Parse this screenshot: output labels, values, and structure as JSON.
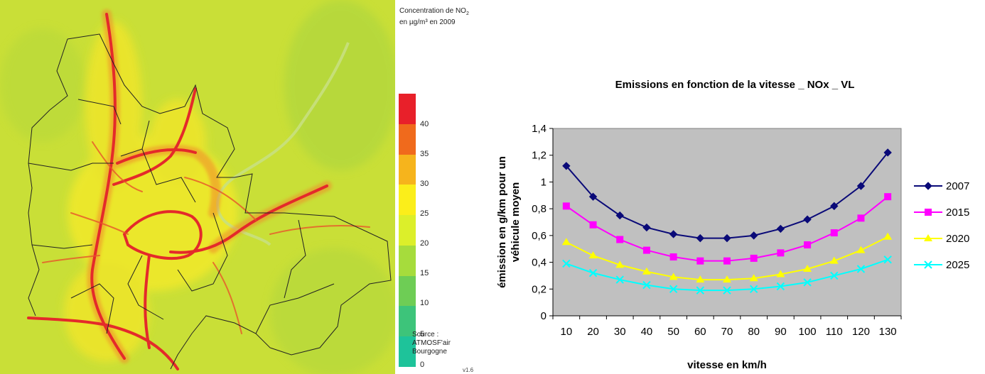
{
  "map": {
    "legend_title_line1": "Concentration de NO",
    "legend_title_sub": "2",
    "legend_title_line2": "en µg/m³ en 2009",
    "scale_ticks": [
      "40",
      "35",
      "30",
      "25",
      "20",
      "15",
      "10",
      "5",
      "0"
    ],
    "scale_colors": [
      "#e8202a",
      "#f06a1c",
      "#f6b41c",
      "#fbee1a",
      "#dcef2a",
      "#a6dc3c",
      "#6ecd55",
      "#3dc47a",
      "#1ec39a"
    ],
    "source_line1": "Source :",
    "source_line2": "ATMOSF'air",
    "source_line3": "Bourgogne",
    "version": "v1.6"
  },
  "chart_data": {
    "type": "line",
    "title": "Emissions en fonction de la vitesse _ NOx _ VL",
    "xlabel": "vitesse en km/h",
    "ylabel_line1": "émission en g/km  pour un",
    "ylabel_line2": "véhicule moyen",
    "categories": [
      "10",
      "20",
      "30",
      "40",
      "50",
      "60",
      "70",
      "80",
      "90",
      "100",
      "110",
      "120",
      "130"
    ],
    "ylim": [
      0,
      1.4
    ],
    "yticks": [
      "0",
      "0,2",
      "0,4",
      "0,6",
      "0,8",
      "1",
      "1,2",
      "1,4"
    ],
    "legend_position": "right",
    "plot_background": "#c0c0c0",
    "series": [
      {
        "name": "2007",
        "color": "#0a0a78",
        "marker": "diamond",
        "values": [
          1.12,
          0.89,
          0.75,
          0.66,
          0.61,
          0.58,
          0.58,
          0.6,
          0.65,
          0.72,
          0.82,
          0.97,
          1.22
        ]
      },
      {
        "name": "2015",
        "color": "#ff00ff",
        "marker": "square",
        "values": [
          0.82,
          0.68,
          0.57,
          0.49,
          0.44,
          0.41,
          0.41,
          0.43,
          0.47,
          0.53,
          0.62,
          0.73,
          0.89
        ]
      },
      {
        "name": "2020",
        "color": "#ffff00",
        "marker": "triangle",
        "values": [
          0.55,
          0.45,
          0.38,
          0.33,
          0.29,
          0.27,
          0.27,
          0.28,
          0.31,
          0.35,
          0.41,
          0.49,
          0.59
        ]
      },
      {
        "name": "2025",
        "color": "#00ffff",
        "marker": "x",
        "values": [
          0.39,
          0.32,
          0.27,
          0.23,
          0.2,
          0.19,
          0.19,
          0.2,
          0.22,
          0.25,
          0.3,
          0.35,
          0.42
        ]
      }
    ]
  }
}
